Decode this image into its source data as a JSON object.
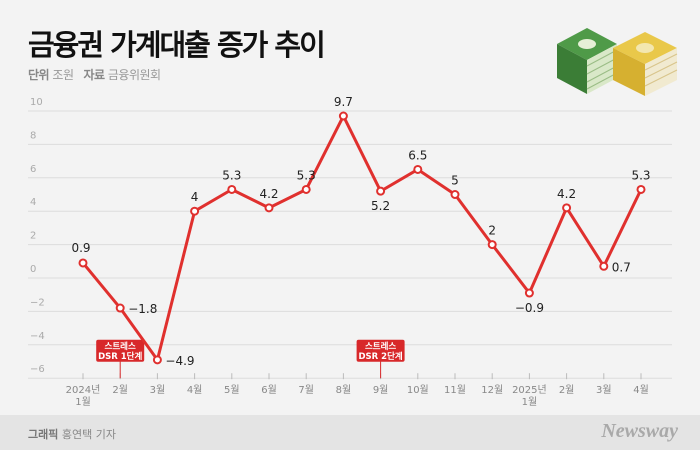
{
  "header": {
    "title": "금융권 가계대출 증가 추이",
    "unit_label": "단위",
    "unit": "조원",
    "source_label": "자료",
    "source": "금융위원회"
  },
  "footer": {
    "credit_label": "그래픽",
    "credit": "홍연택 기자",
    "logo": "Newsway"
  },
  "colors": {
    "line": "#e0302e",
    "grid": "#dcdcdc",
    "annotation": "#d8282a"
  },
  "chart_data": {
    "type": "line",
    "title": "금융권 가계대출 증가 추이",
    "ylabel": "조원",
    "ylim": [
      -6,
      10
    ],
    "yticks": [
      10,
      8,
      6,
      4,
      2,
      0,
      -2,
      -4,
      -6
    ],
    "categories": [
      "2024년\n1월",
      "2월",
      "3월",
      "4월",
      "5월",
      "6월",
      "7월",
      "8월",
      "9월",
      "10월",
      "11월",
      "12월",
      "2025년\n1월",
      "2월",
      "3월",
      "4월"
    ],
    "values": [
      0.9,
      -1.8,
      -4.9,
      4,
      5.3,
      4.2,
      5.3,
      9.7,
      5.2,
      6.5,
      5,
      2,
      -0.9,
      4.2,
      0.7,
      5.3
    ],
    "data_labels": [
      "0.9",
      "−1.8",
      "−4.9",
      "4",
      "5.3",
      "4.2",
      "5.3",
      "9.7",
      "5.2",
      "6.5",
      "5",
      "2",
      "−0.9",
      "4.2",
      "0.7",
      "5.3"
    ],
    "annotations": [
      {
        "index": 1,
        "text": [
          "스트레스",
          "DSR 1단계"
        ]
      },
      {
        "index": 8,
        "text": [
          "스트레스",
          "DSR 2단계"
        ]
      }
    ],
    "grid": true
  }
}
